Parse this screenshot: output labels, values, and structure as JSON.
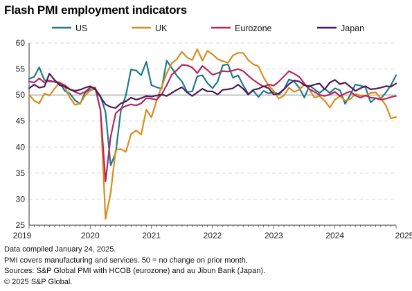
{
  "title": "Flash PMI employment indicators",
  "notes": [
    "Data compiled January 24, 2025.",
    "PMI covers manufacturing and services. 50 = no change on prior month.",
    "Sources: S&P Global PMI with HCOB (eurozone) and au Jibun Bank (Japan).",
    "© 2025 S&P Global."
  ],
  "chart_data": {
    "type": "line",
    "title": "Flash PMI employment indicators",
    "xlabel": "",
    "ylabel": "",
    "ylim": [
      25,
      60
    ],
    "yticks": [
      25,
      30,
      35,
      40,
      45,
      50,
      55,
      60
    ],
    "xlim": [
      "2019-01",
      "2025-01"
    ],
    "xticks": [
      "2019",
      "2020",
      "2021",
      "2022",
      "2023",
      "2024",
      "2025"
    ],
    "grid": "horizontal dashed",
    "reference_line": 50,
    "legend_position": "top",
    "x_start": "2019-01",
    "x_frequency": "monthly",
    "series": [
      {
        "name": "US",
        "color": "#1f7a8c",
        "values": [
          53.1,
          53.5,
          55.3,
          52.9,
          52.6,
          52.6,
          52.4,
          50.8,
          50.3,
          49.0,
          48.3,
          50.5,
          51.1,
          51.1,
          49.8,
          46.7,
          36.5,
          38.9,
          47.0,
          50.0,
          54.9,
          54.7,
          53.8,
          56.4,
          51.9,
          51.5,
          51.2,
          56.6,
          55.2,
          53.7,
          52.6,
          50.6,
          50.7,
          53.6,
          53.8,
          52.3,
          51.3,
          52.6,
          55.7,
          55.9,
          53.3,
          53.8,
          51.9,
          50.2,
          50.8,
          49.6,
          50.8,
          50.3,
          50.6,
          50.1,
          51.1,
          53.0,
          52.6,
          51.4,
          49.5,
          51.8,
          51.1,
          50.4,
          51.2,
          50.4,
          51.3,
          50.9,
          48.3,
          50.0,
          52.0,
          51.8,
          51.5,
          48.6,
          49.4,
          49.3,
          50.5,
          51.9,
          53.8
        ]
      },
      {
        "name": "UK",
        "color": "#d98c1a",
        "values": [
          50.1,
          48.9,
          48.4,
          50.3,
          49.9,
          51.2,
          52.5,
          51.6,
          49.5,
          48.1,
          48.4,
          49.9,
          50.9,
          51.2,
          47.1,
          26.2,
          31.2,
          39.5,
          39.6,
          39.1,
          42.5,
          43.2,
          42.4,
          47.2,
          45.7,
          48.9,
          51.6,
          54.2,
          56.1,
          56.9,
          58.3,
          57.2,
          56.7,
          58.8,
          56.6,
          58.5,
          57.8,
          56.9,
          56.5,
          56.2,
          57.6,
          58.1,
          58.1,
          56.7,
          55.9,
          55.5,
          53.4,
          51.8,
          50.8,
          49.3,
          49.9,
          51.4,
          50.6,
          51.0,
          52.0,
          51.1,
          49.5,
          49.8,
          48.9,
          47.6,
          49.1,
          49.8,
          48.9,
          49.2,
          50.2,
          49.9,
          49.8,
          50.4,
          50.5,
          49.4,
          48.0,
          45.5,
          45.8
        ]
      },
      {
        "name": "Eurozone",
        "color": "#b5275e",
        "values": [
          52.6,
          52.4,
          53.2,
          52.4,
          52.8,
          52.5,
          52.3,
          51.9,
          51.1,
          50.6,
          50.2,
          50.6,
          51.5,
          51.4,
          47.1,
          33.4,
          42.0,
          46.5,
          47.4,
          47.9,
          48.2,
          48.0,
          48.4,
          49.4,
          49.3,
          49.1,
          50.1,
          51.9,
          53.9,
          54.8,
          55.8,
          55.7,
          55.3,
          54.2,
          55.6,
          54.8,
          53.9,
          54.2,
          54.6,
          54.5,
          54.7,
          55.0,
          54.6,
          53.7,
          52.9,
          52.2,
          51.6,
          52.0,
          51.8,
          52.6,
          53.6,
          54.6,
          54.1,
          53.5,
          52.2,
          51.1,
          50.6,
          50.0,
          49.8,
          50.1,
          50.6,
          49.8,
          50.3,
          50.7,
          49.9,
          49.5,
          49.9,
          49.5,
          49.4,
          49.1,
          49.3,
          49.6,
          49.8
        ]
      },
      {
        "name": "Japan",
        "color": "#4b1a5c",
        "values": [
          51.3,
          52.0,
          51.4,
          51.6,
          54.1,
          52.9,
          51.9,
          51.6,
          51.1,
          50.8,
          51.0,
          51.4,
          51.7,
          51.1,
          49.6,
          48.2,
          47.7,
          47.5,
          48.4,
          48.8,
          49.5,
          49.1,
          49.4,
          49.8,
          49.7,
          49.9,
          50.1,
          49.8,
          50.4,
          51.0,
          51.5,
          50.5,
          49.8,
          50.5,
          51.2,
          50.7,
          50.7,
          50.1,
          51.0,
          51.1,
          51.3,
          52.0,
          51.2,
          50.1,
          51.0,
          51.2,
          51.7,
          51.3,
          50.1,
          50.3,
          51.1,
          52.1,
          52.8,
          52.6,
          51.9,
          51.7,
          52.0,
          52.2,
          51.1,
          52.4,
          52.9,
          52.1,
          52.4,
          51.6,
          50.8,
          51.3,
          51.7,
          51.1,
          51.2,
          51.4,
          51.7,
          51.6,
          52.2
        ]
      }
    ]
  }
}
